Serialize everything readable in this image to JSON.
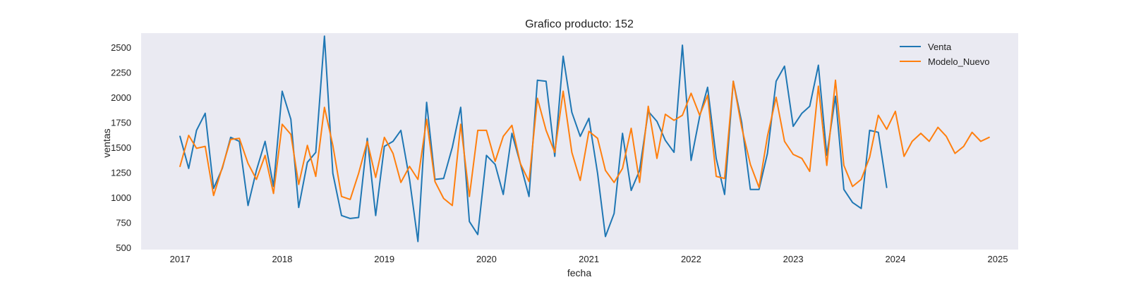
{
  "chart_data": {
    "type": "line",
    "title": "Grafico producto: 152",
    "xlabel": "fecha",
    "ylabel": "ventas",
    "x_axis": "date",
    "xlim": [
      "2016-08-15",
      "2025-03-15"
    ],
    "ylim": [
      480,
      2640
    ],
    "x_ticks": [
      {
        "value": "2017-01-01",
        "label": "2017"
      },
      {
        "value": "2018-01-01",
        "label": "2018"
      },
      {
        "value": "2019-01-01",
        "label": "2019"
      },
      {
        "value": "2020-01-01",
        "label": "2020"
      },
      {
        "value": "2021-01-01",
        "label": "2021"
      },
      {
        "value": "2022-01-01",
        "label": "2022"
      },
      {
        "value": "2023-01-01",
        "label": "2023"
      },
      {
        "value": "2024-01-01",
        "label": "2024"
      },
      {
        "value": "2025-01-01",
        "label": "2025"
      }
    ],
    "y_ticks": [
      500,
      750,
      1000,
      1250,
      1500,
      1750,
      2000,
      2250,
      2500
    ],
    "grid": false,
    "background": "#eaeaf2",
    "legend_position": "top-right",
    "x": [
      "2017-01",
      "2017-02",
      "2017-03",
      "2017-04",
      "2017-05",
      "2017-06",
      "2017-07",
      "2017-08",
      "2017-09",
      "2017-10",
      "2017-11",
      "2017-12",
      "2018-01",
      "2018-02",
      "2018-03",
      "2018-04",
      "2018-05",
      "2018-06",
      "2018-07",
      "2018-08",
      "2018-09",
      "2018-10",
      "2018-11",
      "2018-12",
      "2019-01",
      "2019-02",
      "2019-03",
      "2019-04",
      "2019-05",
      "2019-06",
      "2019-07",
      "2019-08",
      "2019-09",
      "2019-10",
      "2019-11",
      "2019-12",
      "2020-01",
      "2020-02",
      "2020-03",
      "2020-04",
      "2020-05",
      "2020-06",
      "2020-07",
      "2020-08",
      "2020-09",
      "2020-10",
      "2020-11",
      "2020-12",
      "2021-01",
      "2021-02",
      "2021-03",
      "2021-04",
      "2021-05",
      "2021-06",
      "2021-07",
      "2021-08",
      "2021-09",
      "2021-10",
      "2021-11",
      "2021-12",
      "2022-01",
      "2022-02",
      "2022-03",
      "2022-04",
      "2022-05",
      "2022-06",
      "2022-07",
      "2022-08",
      "2022-09",
      "2022-10",
      "2022-11",
      "2022-12",
      "2023-01",
      "2023-02",
      "2023-03",
      "2023-04",
      "2023-05",
      "2023-06",
      "2023-07",
      "2023-08",
      "2023-09",
      "2023-10",
      "2023-11",
      "2023-12",
      "2024-01",
      "2024-02",
      "2024-03",
      "2024-04",
      "2024-05",
      "2024-06",
      "2024-07",
      "2024-08",
      "2024-09",
      "2024-10",
      "2024-11",
      "2024-12"
    ],
    "series": [
      {
        "name": "Venta",
        "color": "#1f77b4",
        "values": [
          1610,
          1290,
          1670,
          1840,
          1090,
          1290,
          1600,
          1560,
          920,
          1270,
          1560,
          1110,
          2060,
          1780,
          900,
          1350,
          1450,
          2610,
          1240,
          820,
          790,
          800,
          1590,
          820,
          1510,
          1560,
          1670,
          1180,
          560,
          1950,
          1180,
          1190,
          1500,
          1900,
          760,
          630,
          1420,
          1330,
          1030,
          1640,
          1340,
          1010,
          2170,
          2160,
          1410,
          2410,
          1850,
          1610,
          1790,
          1240,
          610,
          840,
          1640,
          1070,
          1270,
          1860,
          1760,
          1570,
          1450,
          2520,
          1370,
          1810,
          2100,
          1390,
          1030,
          2160,
          1750,
          1080,
          1080,
          1440,
          2160,
          2310,
          1710,
          1840,
          1910,
          2320,
          1420,
          2010,
          1080,
          950,
          890,
          1670,
          1650,
          1100,
          null,
          null,
          null,
          null,
          null,
          null,
          null,
          null,
          null,
          null,
          null,
          null
        ]
      },
      {
        "name": "Modelo_Nuevo",
        "color": "#ff7f0e",
        "values": [
          1310,
          1620,
          1490,
          1510,
          1020,
          1300,
          1580,
          1590,
          1340,
          1180,
          1420,
          1040,
          1730,
          1630,
          1130,
          1520,
          1210,
          1900,
          1520,
          1010,
          980,
          1240,
          1560,
          1200,
          1600,
          1440,
          1150,
          1310,
          1180,
          1780,
          1160,
          990,
          920,
          1730,
          1010,
          1670,
          1670,
          1360,
          1610,
          1720,
          1340,
          1160,
          1990,
          1670,
          1450,
          2060,
          1450,
          1170,
          1660,
          1590,
          1270,
          1150,
          1290,
          1690,
          1150,
          1910,
          1390,
          1830,
          1770,
          1820,
          2040,
          1820,
          2020,
          1210,
          1190,
          2160,
          1700,
          1330,
          1100,
          1610,
          2000,
          1560,
          1430,
          1390,
          1260,
          2110,
          1320,
          2170,
          1320,
          1110,
          1180,
          1400,
          1820,
          1680,
          1860,
          1410,
          1560,
          1640,
          1560,
          1700,
          1610,
          1440,
          1510,
          1650,
          1560,
          1600
        ]
      }
    ]
  }
}
